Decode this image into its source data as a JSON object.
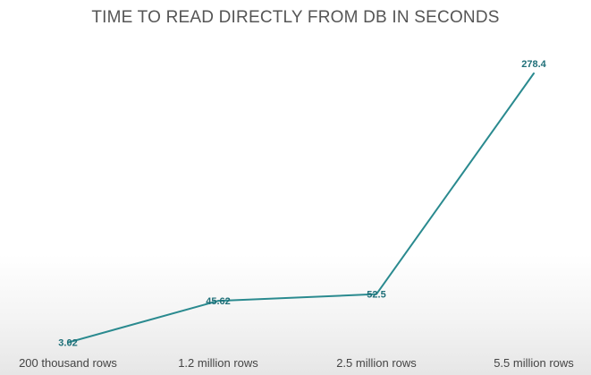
{
  "chart_data": {
    "type": "line",
    "title": "TIME TO READ DIRECTLY FROM DB IN SECONDS",
    "xlabel": "",
    "ylabel": "",
    "categories": [
      "200 thousand rows",
      "1.2 million rows",
      "2.5 million rows",
      "5.5 million rows"
    ],
    "series": [
      {
        "values": [
          3.02,
          45.62,
          52.5,
          278.4
        ],
        "data_labels": [
          "3.02",
          "45.62",
          "52.5",
          "278.4"
        ]
      }
    ],
    "ylim": [
      0,
      278.4
    ],
    "grid": false,
    "legend": "none",
    "colors": {
      "line": "#2a8a8f",
      "data_label": "#1f6f78",
      "title": "#555555",
      "tick_label": "#444444"
    }
  }
}
